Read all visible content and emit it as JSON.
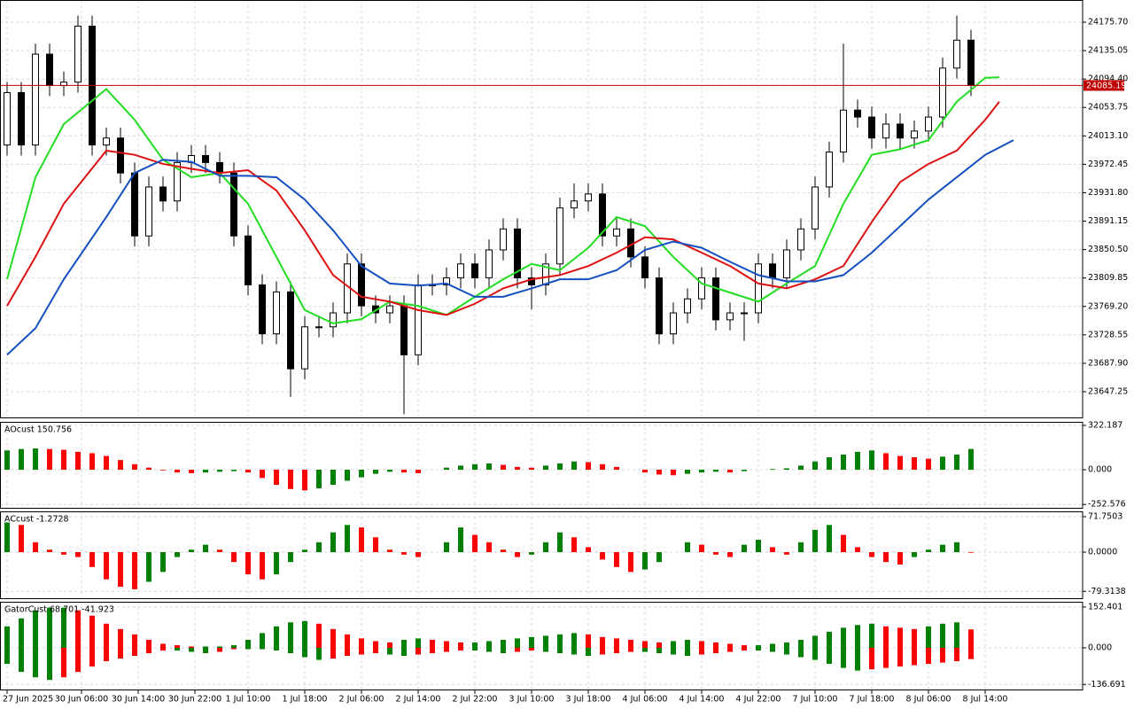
{
  "chart_data": [
    {
      "type": "candlestick",
      "open": [
        24000,
        24075,
        24000,
        24130,
        24085,
        24090,
        24170,
        24000,
        24010,
        23960,
        23870,
        23940,
        23920,
        23975,
        23985,
        23975,
        23960,
        23870,
        23800,
        23730,
        23790,
        23680,
        23740,
        23740,
        23760,
        23830,
        23770,
        23760,
        23770,
        23700,
        23800,
        23800,
        23810,
        23830,
        23810,
        23850,
        23880,
        23810,
        23800,
        23830,
        23910,
        23920,
        23930,
        23870,
        23880,
        23840,
        23810,
        23730,
        23760,
        23780,
        23810,
        23750,
        23760,
        23760,
        23830,
        23810,
        23850,
        23880,
        23940,
        23990,
        24050,
        24040,
        24010,
        24030,
        24010,
        24020,
        24040,
        24110,
        24150
      ],
      "high": [
        24090,
        24090,
        24145,
        24145,
        24105,
        24185,
        24185,
        24025,
        24025,
        23975,
        23955,
        23955,
        23990,
        24000,
        24000,
        23990,
        23975,
        23885,
        23815,
        23805,
        23805,
        23755,
        23755,
        23775,
        23845,
        23845,
        23785,
        23785,
        23785,
        23815,
        23815,
        23825,
        23845,
        23845,
        23865,
        23895,
        23895,
        23825,
        23845,
        23925,
        23945,
        23945,
        23945,
        23895,
        23895,
        23855,
        23825,
        23775,
        23795,
        23825,
        23825,
        23775,
        23775,
        23845,
        23845,
        23865,
        23895,
        23955,
        24005,
        24145,
        24065,
        24055,
        24045,
        24045,
        24035,
        24055,
        24125,
        24185,
        24165
      ],
      "low": [
        23985,
        23985,
        23985,
        24070,
        24070,
        24075,
        23985,
        23985,
        23945,
        23855,
        23855,
        23905,
        23905,
        23960,
        23960,
        23945,
        23855,
        23785,
        23715,
        23715,
        23640,
        23665,
        23725,
        23725,
        23745,
        23755,
        23745,
        23745,
        23615,
        23685,
        23785,
        23785,
        23795,
        23795,
        23795,
        23835,
        23795,
        23765,
        23785,
        23815,
        23895,
        23905,
        23855,
        23855,
        23825,
        23795,
        23715,
        23715,
        23745,
        23765,
        23735,
        23735,
        23720,
        23745,
        23795,
        23795,
        23835,
        23865,
        23925,
        23975,
        24025,
        23995,
        23995,
        23995,
        23995,
        24005,
        24025,
        24095,
        24070
      ],
      "close": [
        24075,
        24000,
        24130,
        24085,
        24090,
        24170,
        24000,
        24010,
        23960,
        23870,
        23940,
        23920,
        23975,
        23985,
        23975,
        23960,
        23870,
        23800,
        23730,
        23790,
        23680,
        23740,
        23740,
        23760,
        23830,
        23770,
        23760,
        23770,
        23700,
        23800,
        23800,
        23810,
        23830,
        23810,
        23850,
        23880,
        23810,
        23800,
        23830,
        23910,
        23920,
        23930,
        23870,
        23880,
        23840,
        23810,
        23730,
        23760,
        23780,
        23810,
        23750,
        23760,
        23760,
        23830,
        23810,
        23850,
        23880,
        23940,
        23990,
        24050,
        24040,
        24010,
        24030,
        24010,
        24020,
        24040,
        24110,
        24150,
        24085.19
      ],
      "up_color": "#ffffff",
      "down_color": "#000000",
      "lines": [
        {
          "color": "#22dd22",
          "x": [
            0,
            2,
            4,
            7,
            9,
            11,
            13,
            15,
            17,
            19,
            21,
            23,
            25,
            27,
            29,
            31,
            33,
            35,
            37,
            39,
            41,
            43,
            45,
            47,
            49,
            51,
            53,
            55,
            57,
            59,
            61,
            63,
            65,
            67,
            69,
            70
          ],
          "values": [
            23808,
            23954,
            24030,
            24080,
            24036,
            23979,
            23954,
            23960,
            23916,
            23840,
            23764,
            23745,
            23751,
            23776,
            23770,
            23757,
            23783,
            23808,
            23830,
            23821,
            23853,
            23897,
            23884,
            23840,
            23802,
            23789,
            23776,
            23802,
            23827,
            23916,
            23986,
            23994,
            24007,
            24062,
            24096,
            24097
          ]
        },
        {
          "color": "#dd1111",
          "x": [
            0,
            2,
            4,
            7,
            9,
            11,
            13,
            15,
            17,
            19,
            21,
            23,
            25,
            27,
            29,
            31,
            33,
            35,
            37,
            39,
            41,
            43,
            45,
            47,
            49,
            51,
            53,
            55,
            57,
            59,
            61,
            63,
            65,
            67,
            69,
            70
          ],
          "values": [
            23770,
            23840,
            23916,
            23992,
            23986,
            23973,
            23966,
            23960,
            23964,
            23935,
            23878,
            23814,
            23783,
            23776,
            23764,
            23757,
            23773,
            23795,
            23808,
            23814,
            23827,
            23846,
            23868,
            23865,
            23846,
            23827,
            23802,
            23795,
            23808,
            23827,
            23890,
            23947,
            23973,
            23992,
            24036,
            24062
          ]
        },
        {
          "color": "#1550c0",
          "x": [
            0,
            2,
            4,
            7,
            9,
            11,
            13,
            15,
            17,
            19,
            21,
            23,
            25,
            27,
            29,
            31,
            33,
            35,
            37,
            39,
            41,
            43,
            45,
            47,
            49,
            51,
            53,
            55,
            57,
            59,
            61,
            63,
            65,
            67,
            69,
            71
          ],
          "values": [
            23700,
            23738,
            23808,
            23897,
            23960,
            23979,
            23976,
            23956,
            23956,
            23954,
            23922,
            23878,
            23827,
            23802,
            23799,
            23802,
            23783,
            23783,
            23795,
            23808,
            23808,
            23821,
            23850,
            23862,
            23853,
            23833,
            23814,
            23805,
            23805,
            23814,
            23846,
            23884,
            23922,
            23954,
            23986,
            24007
          ]
        }
      ],
      "current_price": 24085.19,
      "current_color": "#c00000",
      "ylim": [
        23609.2,
        24207.4
      ],
      "yticks": [
        {
          "value": 24175.7,
          "label": "24175.70"
        },
        24135.05,
        {
          "value": 24094.4,
          "label": "24094.40"
        },
        24053.75,
        {
          "value": 24013.1,
          "label": "24013.10"
        },
        23972.45,
        {
          "value": 23931.8,
          "label": "23931.80"
        },
        23891.15,
        {
          "value": 23850.5,
          "label": "23850.50"
        },
        23809.85,
        {
          "value": 23769.2,
          "label": "23769.20"
        },
        23728.55,
        {
          "value": 23687.9,
          "label": "23687.90"
        },
        23647.25
      ],
      "xlim": [
        -0.5,
        75.875
      ],
      "xticks": [
        {
          "value": 0,
          "label": "27 Jun 2025"
        },
        {
          "value": 5.25,
          "label": "30 Jun 06:00"
        },
        {
          "value": 9.25,
          "label": "30 Jun 14:00"
        },
        {
          "value": 13.25,
          "label": "30 Jun 22:00"
        },
        {
          "value": 17,
          "label": "1 Jul 10:00"
        },
        {
          "value": 21,
          "label": "1 Jul 18:00"
        },
        {
          "value": 25,
          "label": "2 Jul 06:00"
        },
        {
          "value": 29,
          "label": "2 Jul 14:00"
        },
        {
          "value": 33,
          "label": "2 Jul 22:00"
        },
        {
          "value": 37,
          "label": "3 Jul 10:00"
        },
        {
          "value": 41,
          "label": "3 Jul 18:00"
        },
        {
          "value": 45,
          "label": "4 Jul 06:00"
        },
        {
          "value": 49,
          "label": "4 Jul 14:00"
        },
        {
          "value": 53,
          "label": "4 Jul 22:00"
        },
        {
          "value": 57,
          "label": "7 Jul 10:00"
        },
        {
          "value": 61,
          "label": "7 Jul 18:00"
        },
        {
          "value": 65,
          "label": "8 Jul 06:00"
        },
        {
          "value": 69,
          "label": "8 Jul 14:00"
        }
      ],
      "grid": true
    },
    {
      "type": "bar",
      "label": "AOcust 150.756",
      "values": [
        140,
        150,
        155,
        150,
        145,
        130,
        120,
        100,
        70,
        40,
        15,
        -5,
        -20,
        -25,
        -20,
        -15,
        -10,
        -20,
        -60,
        -110,
        -140,
        -150,
        -135,
        -110,
        -80,
        -55,
        -30,
        -15,
        -20,
        -25,
        0,
        15,
        30,
        40,
        45,
        35,
        20,
        15,
        30,
        45,
        60,
        55,
        40,
        20,
        0,
        -20,
        -35,
        -40,
        -30,
        -20,
        -15,
        -20,
        -10,
        0,
        5,
        10,
        30,
        60,
        90,
        110,
        130,
        140,
        120,
        100,
        90,
        80,
        95,
        110,
        150.756
      ],
      "up_color": "#008000",
      "down_color": "#ff0000",
      "ylim": [
        -283.5,
        348
      ],
      "yticks": [
        322.187,
        {
          "value": 0,
          "label": "0.000"
        },
        -252.576
      ]
    },
    {
      "type": "bar",
      "label": "ACcust -1.2728",
      "values": [
        60,
        55,
        20,
        5,
        -5,
        -10,
        -30,
        -55,
        -70,
        -75,
        -60,
        -40,
        -10,
        5,
        15,
        5,
        -20,
        -45,
        -55,
        -45,
        -20,
        5,
        20,
        40,
        55,
        50,
        30,
        5,
        -5,
        -10,
        0,
        20,
        50,
        35,
        20,
        5,
        -10,
        -5,
        20,
        40,
        30,
        10,
        -15,
        -30,
        -40,
        -35,
        -20,
        0,
        20,
        15,
        -5,
        -10,
        15,
        25,
        10,
        -5,
        20,
        45,
        55,
        35,
        10,
        -10,
        -20,
        -25,
        -10,
        5,
        15,
        20,
        -1.2728
      ],
      "up_color": "#008000",
      "down_color": "#ff0000",
      "ylim": [
        -95,
        82.5
      ],
      "yticks": [
        71.7503,
        {
          "value": 0,
          "label": "0.0000"
        },
        -79.3138
      ]
    },
    {
      "type": "gator",
      "label": "GatorCust 68.701 -41.923",
      "upper": [
        80,
        110,
        140,
        150,
        150,
        140,
        120,
        90,
        70,
        50,
        30,
        15,
        10,
        5,
        5,
        5,
        10,
        30,
        55,
        80,
        95,
        100,
        90,
        70,
        50,
        35,
        25,
        20,
        30,
        35,
        30,
        25,
        20,
        20,
        25,
        30,
        35,
        40,
        45,
        50,
        55,
        50,
        40,
        35,
        30,
        25,
        20,
        25,
        30,
        25,
        20,
        15,
        10,
        10,
        15,
        20,
        30,
        45,
        60,
        75,
        85,
        90,
        80,
        75,
        70,
        80,
        90,
        95,
        68.701
      ],
      "lower": [
        -60,
        -90,
        -110,
        -120,
        -110,
        -90,
        -70,
        -50,
        -40,
        -30,
        -20,
        -10,
        -10,
        -15,
        -20,
        -15,
        -5,
        -5,
        -5,
        -10,
        -20,
        -35,
        -45,
        -40,
        -30,
        -25,
        -20,
        -25,
        -30,
        -25,
        -20,
        -15,
        -10,
        -10,
        -15,
        -20,
        -15,
        -10,
        -15,
        -20,
        -25,
        -30,
        -25,
        -20,
        -15,
        -15,
        -20,
        -25,
        -30,
        -25,
        -20,
        -15,
        -10,
        -10,
        -15,
        -25,
        -35,
        -45,
        -60,
        -75,
        -85,
        -80,
        -75,
        -70,
        -65,
        -60,
        -55,
        -50,
        -41.923
      ],
      "up_color": "#008000",
      "down_color": "#ff0000",
      "ylim": [
        -159,
        172
      ],
      "yticks": [
        152.401,
        {
          "value": 0,
          "label": "0.000"
        },
        -136.691
      ]
    }
  ]
}
